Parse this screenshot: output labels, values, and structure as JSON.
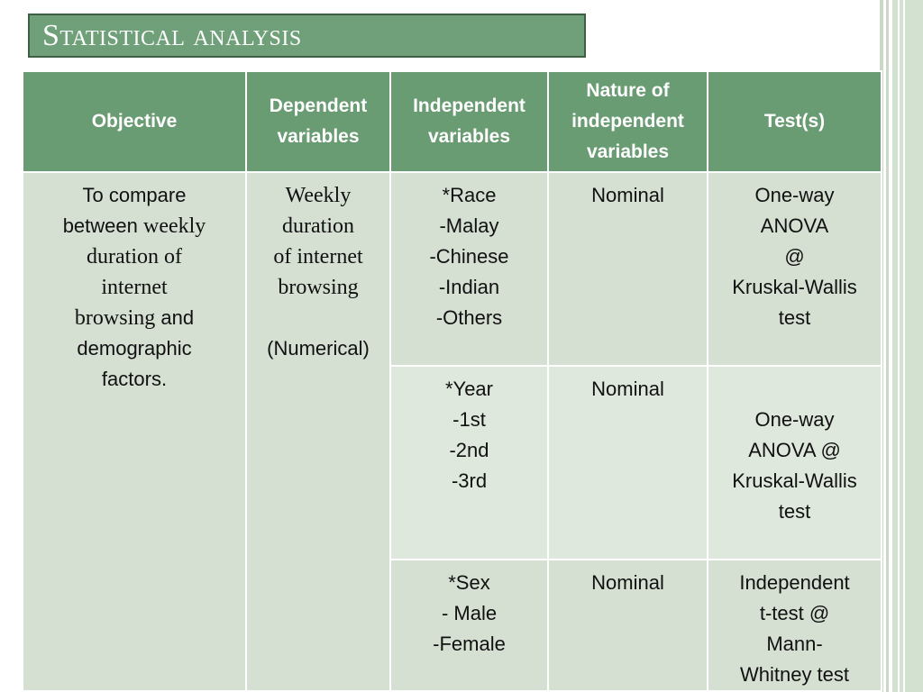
{
  "slide": {
    "title": "Statistical analysis"
  },
  "table": {
    "headers": {
      "objective": "Objective",
      "dependent": [
        "Dependent",
        "variables"
      ],
      "independent": [
        "Independent",
        "variables"
      ],
      "nature": [
        "Nature of",
        "independent",
        "variables"
      ],
      "tests": "Test(s)"
    },
    "objective": {
      "l1": "To compare",
      "l2a": "between ",
      "l2b": "weekly",
      "l3": "duration of",
      "l4": "internet",
      "l5a": "browsing",
      "l5b": " and",
      "l6": "demographic",
      "l7": "factors."
    },
    "dependent": {
      "lines": [
        "Weekly",
        "duration",
        "of internet",
        "browsing"
      ],
      "type": "(Numerical)"
    },
    "rows": [
      {
        "independent": [
          "*Race",
          "-Malay",
          "-Chinese",
          "-Indian",
          "-Others"
        ],
        "nature": "Nominal",
        "tests": [
          "One-way",
          "ANOVA",
          "@",
          "Kruskal-Wallis",
          "test"
        ]
      },
      {
        "independent": [
          "*Year",
          "-1st",
          "-2nd",
          "-3rd"
        ],
        "nature": "Nominal",
        "tests": [
          "One-way",
          "ANOVA @",
          "Kruskal-Wallis",
          "test"
        ]
      },
      {
        "independent": [
          "*Sex",
          "- Male",
          "-Female"
        ],
        "nature": "Nominal",
        "tests": [
          "Independent",
          "t-test @",
          "Mann-",
          "Whitney test"
        ]
      }
    ]
  }
}
